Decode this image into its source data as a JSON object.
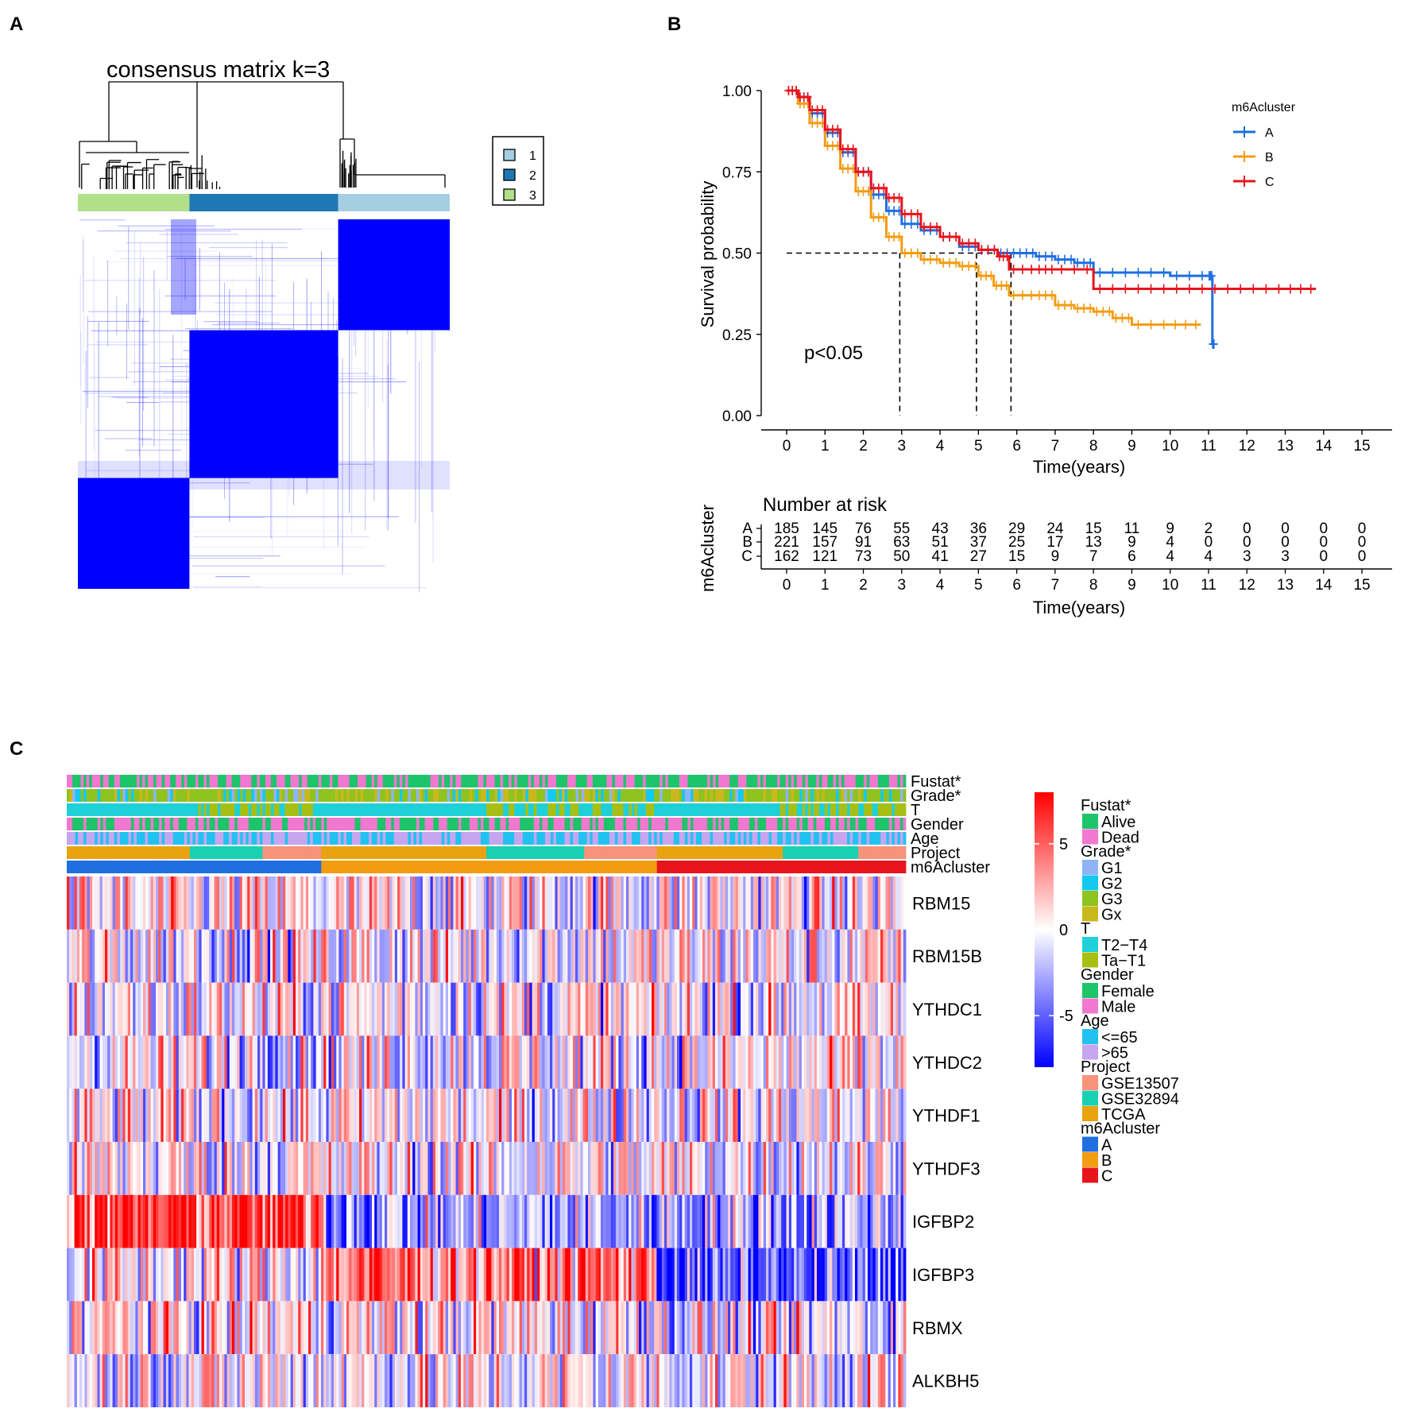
{
  "panels": {
    "a": "A",
    "b": "B",
    "c": "C"
  },
  "colors": {
    "clusterA": "#1f6fe0",
    "clusterB": "#f39c12",
    "clusterC": "#e8141c",
    "consensus": "#0000ff"
  },
  "chart_data": [
    {
      "type": "heatmap",
      "title": "consensus matrix k=3",
      "legend": {
        "labels": [
          "1",
          "2",
          "3"
        ],
        "colors": [
          "#a6cee3",
          "#1f78b4",
          "#b2df8a"
        ]
      },
      "column_bar": [
        {
          "label": "3",
          "fraction": 0.3,
          "color": "#b2df8a"
        },
        {
          "label": "2",
          "fraction": 0.4,
          "color": "#1f78b4"
        },
        {
          "label": "1",
          "fraction": 0.3,
          "color": "#a6cee3"
        }
      ],
      "blocks": [
        {
          "rows": [
            0.0,
            0.3
          ],
          "cols": [
            0.7,
            1.0
          ]
        },
        {
          "rows": [
            0.3,
            0.7
          ],
          "cols": [
            0.3,
            0.7
          ]
        },
        {
          "rows": [
            0.7,
            1.0
          ],
          "cols": [
            0.0,
            0.3
          ]
        }
      ]
    },
    {
      "type": "line",
      "ylabel": "Survival probability",
      "xlabel": "Time(years)",
      "xlim": [
        0,
        15
      ],
      "ylim": [
        0,
        1
      ],
      "x_ticks": [
        "0",
        "1",
        "2",
        "3",
        "4",
        "5",
        "6",
        "7",
        "8",
        "9",
        "10",
        "11",
        "12",
        "13",
        "14",
        "15"
      ],
      "y_ticks": [
        "0.00",
        "0.25",
        "0.50",
        "0.75",
        "1.00"
      ],
      "annotation": "p<0.05",
      "legend_title": "m6Acluster",
      "median_lines": [
        2.95,
        4.95,
        5.85
      ],
      "series": [
        {
          "name": "A",
          "color": "#1f6fe0",
          "x": [
            0,
            0.3,
            0.6,
            1.0,
            1.4,
            1.8,
            2.2,
            2.6,
            3.0,
            3.5,
            4.0,
            4.5,
            5.0,
            5.5,
            6.0,
            6.5,
            7.0,
            7.5,
            8.0,
            9.0,
            10.0,
            11.0,
            11.1,
            11.15
          ],
          "y": [
            1.0,
            0.98,
            0.93,
            0.87,
            0.81,
            0.75,
            0.68,
            0.63,
            0.59,
            0.57,
            0.55,
            0.52,
            0.51,
            0.5,
            0.5,
            0.49,
            0.48,
            0.47,
            0.44,
            0.44,
            0.43,
            0.43,
            0.22,
            0.22
          ]
        },
        {
          "name": "B",
          "color": "#f39c12",
          "x": [
            0,
            0.3,
            0.6,
            1.0,
            1.4,
            1.8,
            2.2,
            2.6,
            3.0,
            3.5,
            4.0,
            4.5,
            5.0,
            5.4,
            5.8,
            6.5,
            7.0,
            7.5,
            8.0,
            8.5,
            9.0,
            10.0,
            10.8
          ],
          "y": [
            1.0,
            0.96,
            0.9,
            0.83,
            0.76,
            0.69,
            0.61,
            0.55,
            0.5,
            0.48,
            0.47,
            0.46,
            0.43,
            0.4,
            0.37,
            0.37,
            0.34,
            0.33,
            0.32,
            0.3,
            0.28,
            0.28,
            0.28
          ]
        },
        {
          "name": "C",
          "color": "#e8141c",
          "x": [
            0,
            0.3,
            0.6,
            1.0,
            1.4,
            1.8,
            2.2,
            2.6,
            3.0,
            3.5,
            4.0,
            4.5,
            5.0,
            5.5,
            5.8,
            6.5,
            7.0,
            8.0,
            9.0,
            10.0,
            11.0,
            12.0,
            13.0,
            13.8
          ],
          "y": [
            1.0,
            0.98,
            0.94,
            0.88,
            0.82,
            0.75,
            0.7,
            0.67,
            0.62,
            0.58,
            0.55,
            0.53,
            0.51,
            0.49,
            0.45,
            0.45,
            0.45,
            0.39,
            0.39,
            0.39,
            0.39,
            0.39,
            0.39,
            0.39
          ]
        }
      ]
    },
    {
      "type": "table",
      "title": "Number at risk",
      "ylabel": "m6Acluster",
      "xlabel": "Time(years)",
      "x_ticks": [
        "0",
        "1",
        "2",
        "3",
        "4",
        "5",
        "6",
        "7",
        "8",
        "9",
        "10",
        "11",
        "12",
        "13",
        "14",
        "15"
      ],
      "rows": [
        {
          "name": "A",
          "color": "#1f6fe0",
          "values": [
            "185",
            "145",
            "76",
            "55",
            "43",
            "36",
            "29",
            "24",
            "15",
            "11",
            "9",
            "2",
            "0",
            "0",
            "0",
            "0"
          ]
        },
        {
          "name": "B",
          "color": "#f39c12",
          "values": [
            "221",
            "157",
            "91",
            "63",
            "51",
            "37",
            "25",
            "17",
            "13",
            "9",
            "4",
            "0",
            "0",
            "0",
            "0",
            "0"
          ]
        },
        {
          "name": "C",
          "color": "#e8141c",
          "values": [
            "162",
            "121",
            "73",
            "50",
            "41",
            "27",
            "15",
            "9",
            "7",
            "6",
            "4",
            "4",
            "3",
            "3",
            "0",
            "0"
          ]
        }
      ]
    },
    {
      "type": "heatmap",
      "annotation_rows": [
        "Fustat*",
        "Grade*",
        "T",
        "Gender",
        "Age",
        "Project",
        "m6Acluster"
      ],
      "genes": [
        "RBM15",
        "RBM15B",
        "YTHDC1",
        "YTHDC2",
        "YTHDF1",
        "YTHDF3",
        "IGFBP2",
        "IGFBP3",
        "RBMX",
        "ALKBH5"
      ],
      "cluster_split": [
        {
          "name": "A",
          "fraction": 0.305
        },
        {
          "name": "B",
          "fraction": 0.397
        },
        {
          "name": "C",
          "fraction": 0.298
        }
      ],
      "colorbar": {
        "ticks": [
          "5",
          "0",
          "-5"
        ],
        "range": [
          -8,
          8
        ],
        "low": "#0000ff",
        "mid": "#ffffff",
        "high": "#ff0000"
      },
      "legend_groups": [
        {
          "title": "Fustat*",
          "items": [
            {
              "label": "Alive",
              "color": "#1dc46a"
            },
            {
              "label": "Dead",
              "color": "#f178d0"
            }
          ]
        },
        {
          "title": "Grade*",
          "items": [
            {
              "label": "G1",
              "color": "#8fb3f5"
            },
            {
              "label": "G2",
              "color": "#12c9f0"
            },
            {
              "label": "G3",
              "color": "#8fc31f"
            },
            {
              "label": "Gx",
              "color": "#c9b81c"
            }
          ]
        },
        {
          "title": "T",
          "items": [
            {
              "label": "T2−T4",
              "color": "#1fd0d8"
            },
            {
              "label": "Ta−T1",
              "color": "#a7bf14"
            }
          ]
        },
        {
          "title": "Gender",
          "items": [
            {
              "label": "Female",
              "color": "#1dc46a"
            },
            {
              "label": "Male",
              "color": "#f178d0"
            }
          ]
        },
        {
          "title": "Age",
          "items": [
            {
              "label": "<=65",
              "color": "#21c2f0"
            },
            {
              "label": ">65",
              "color": "#c5a6ef"
            }
          ]
        },
        {
          "title": "Project",
          "items": [
            {
              "label": "GSE13507",
              "color": "#f7937a"
            },
            {
              "label": "GSE32894",
              "color": "#19d0b3"
            },
            {
              "label": "TCGA",
              "color": "#e8a30e"
            }
          ]
        },
        {
          "title": "m6Acluster",
          "items": [
            {
              "label": "A",
              "color": "#1f6fe0"
            },
            {
              "label": "B",
              "color": "#f39c12"
            },
            {
              "label": "C",
              "color": "#e8141c"
            }
          ]
        }
      ]
    }
  ]
}
